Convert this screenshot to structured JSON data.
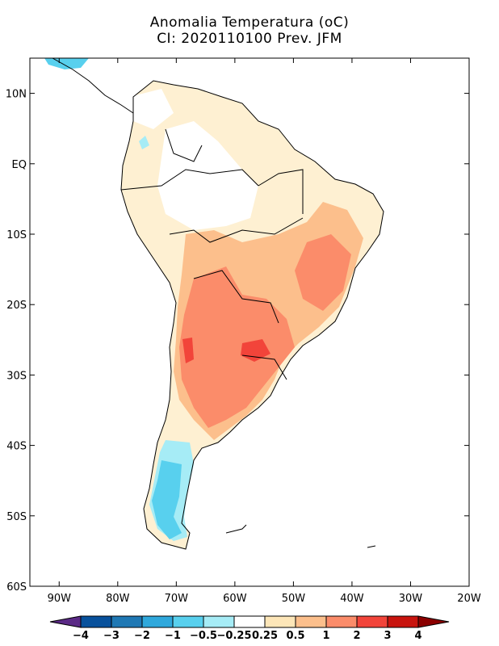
{
  "title": {
    "line1": "Anomalia Temperatura (oC)",
    "line2": "CI: 2020110100 Prev. JFM"
  },
  "axes": {
    "lat_ticks": [
      "10N",
      "EQ",
      "10S",
      "20S",
      "30S",
      "40S",
      "50S",
      "60S"
    ],
    "lon_ticks": [
      "90W",
      "80W",
      "70W",
      "60W",
      "50W",
      "40W",
      "30W",
      "20W"
    ],
    "lat_range": [
      -60,
      15
    ],
    "lon_range": [
      -95,
      -20
    ]
  },
  "colorbar": {
    "labels": [
      "-4",
      "-3",
      "-2",
      "-1",
      "-0.5",
      "-0.25",
      "0.25",
      "0.5",
      "1",
      "2",
      "3",
      "4"
    ],
    "colors": [
      "#5b2a86",
      "#08519c",
      "#1f78b4",
      "#2fa8dc",
      "#58d0ee",
      "#a6ecf6",
      "#ffffff",
      "#fde6b8",
      "#fcbf8c",
      "#fb8c6a",
      "#f2443a",
      "#c8140e",
      "#8b0000"
    ]
  }
}
